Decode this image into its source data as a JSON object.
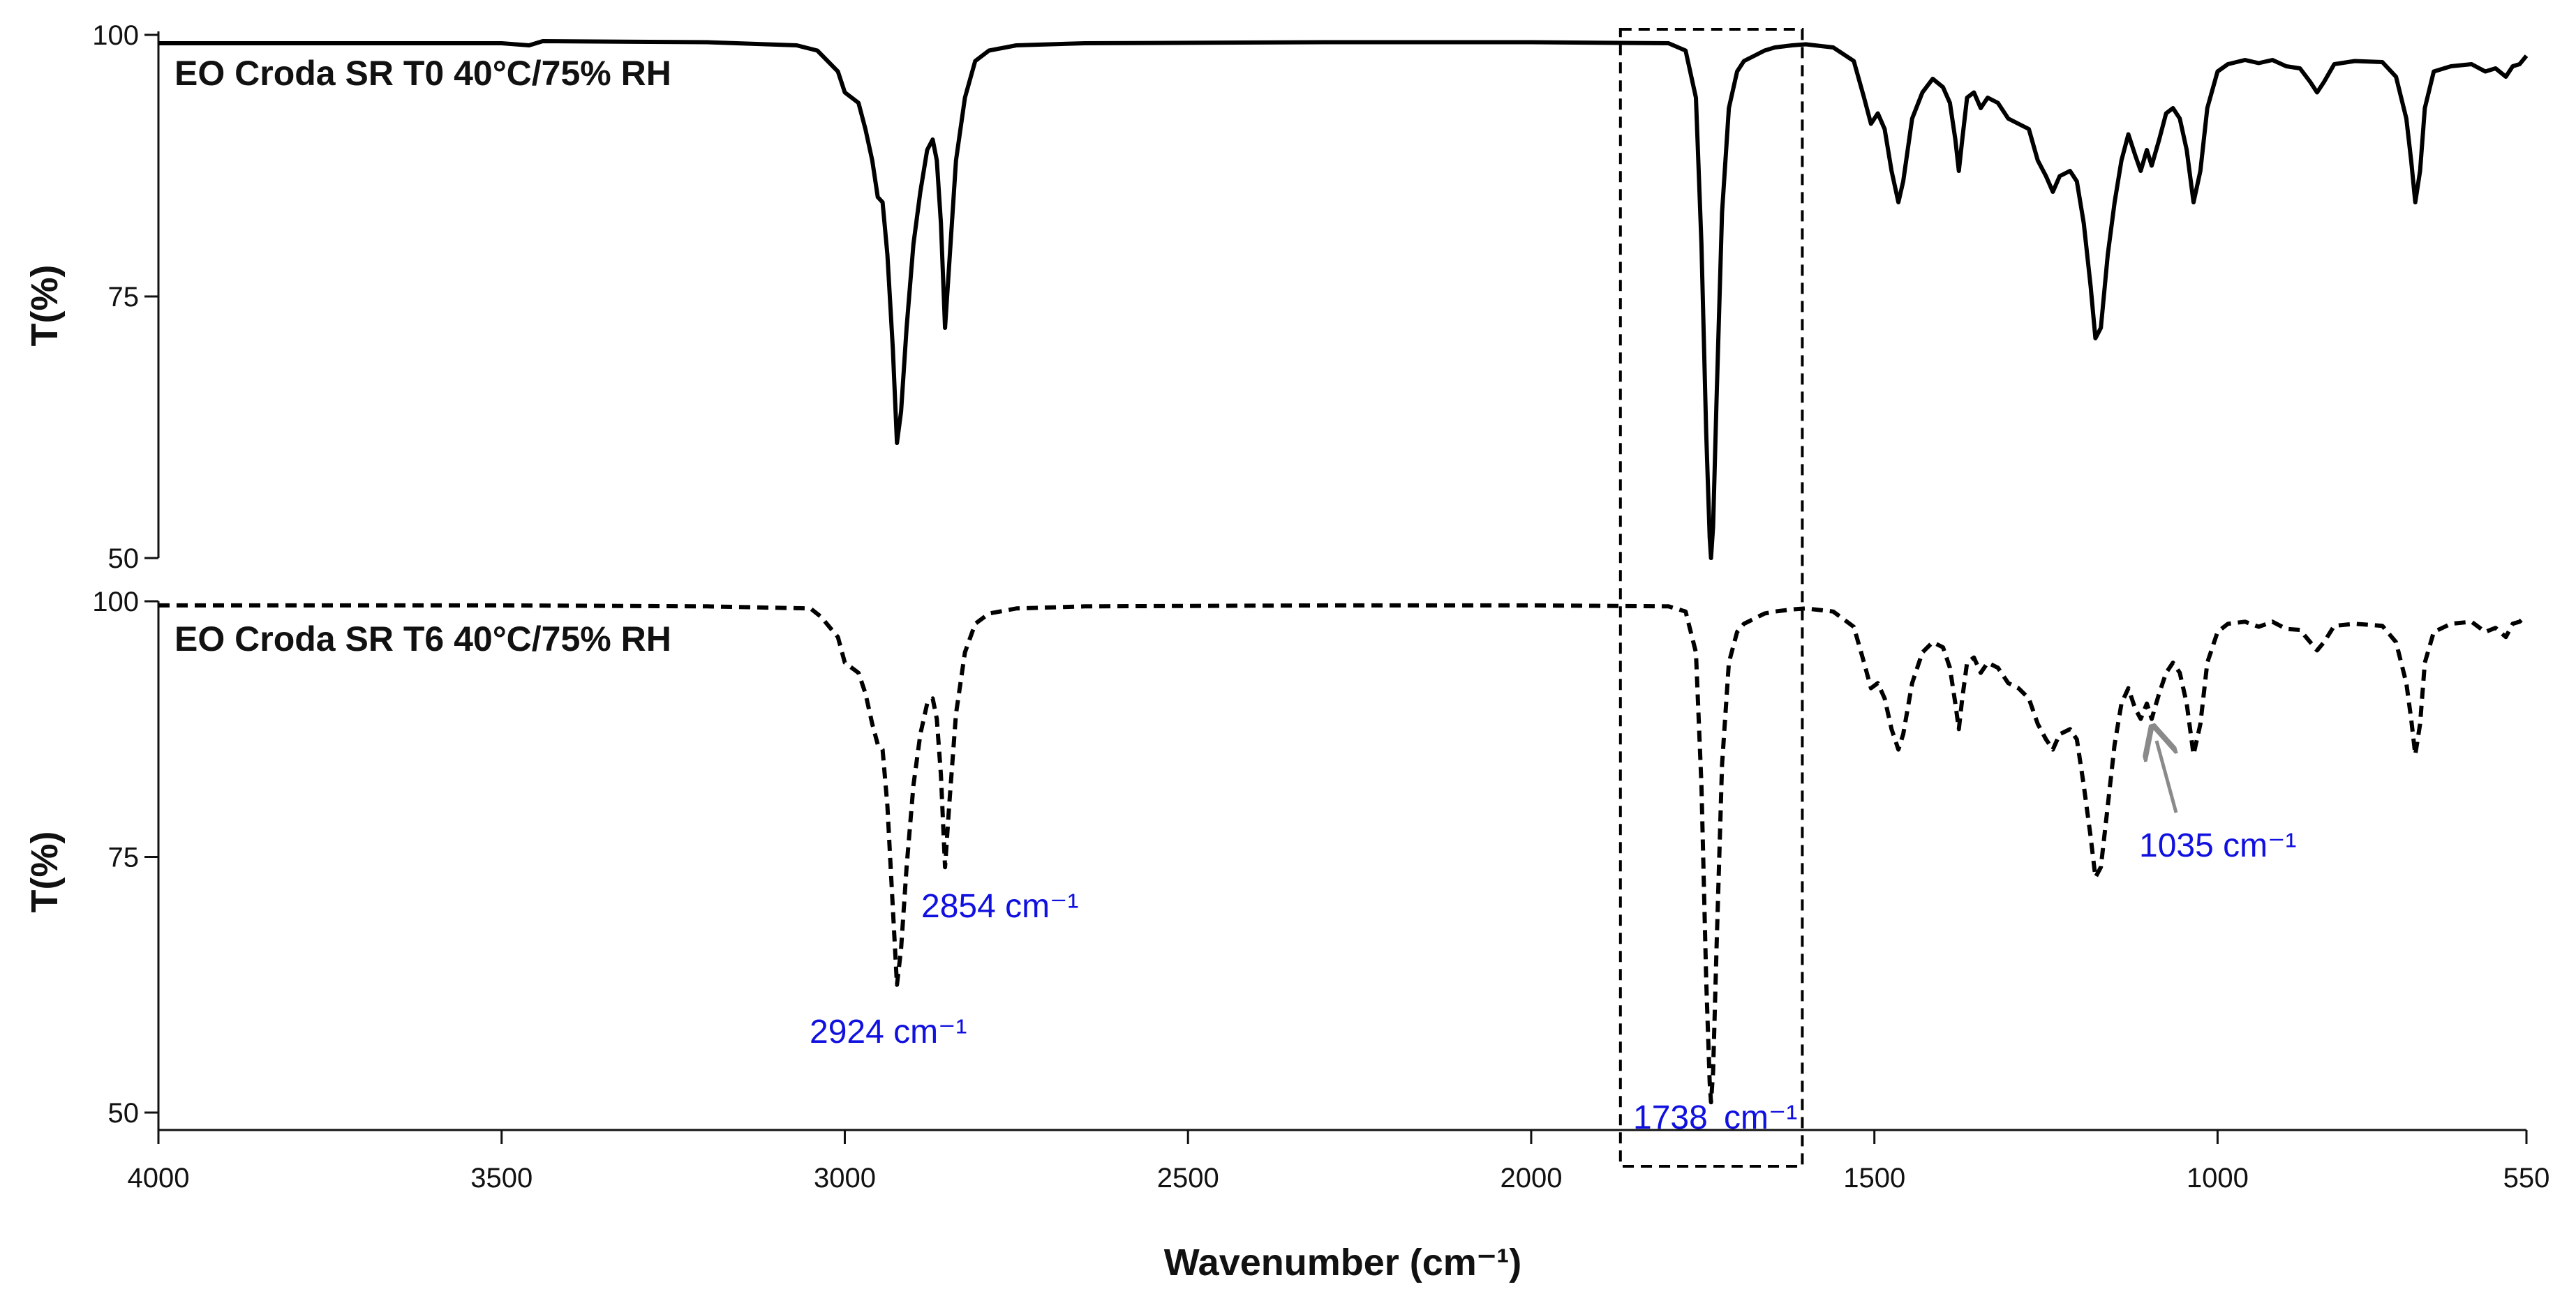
{
  "chart_data": {
    "type": "line",
    "xlabel": "Wavenumber (cm⁻¹)",
    "ylabel": "T(%)",
    "xlim": [
      4000,
      550
    ],
    "x_ticks": [
      {
        "value": 4000,
        "label": "4000"
      },
      {
        "value": 3500,
        "label": "3500"
      },
      {
        "value": 3000,
        "label": "3000"
      },
      {
        "value": 2500,
        "label": "2500"
      },
      {
        "value": 2000,
        "label": "2000"
      },
      {
        "value": 1500,
        "label": "1500"
      },
      {
        "value": 1000,
        "label": "1000"
      },
      {
        "value": 550,
        "label": "550"
      }
    ],
    "panels": [
      {
        "id": "top",
        "label": "EO Croda SR T0 40°C/75% RH",
        "ylim": [
          50,
          100
        ],
        "y_ticks": [
          {
            "value": 100,
            "label": "100"
          },
          {
            "value": 75,
            "label": "75"
          },
          {
            "value": 50,
            "label": "50"
          }
        ],
        "style": "solid",
        "series": [
          [
            4000,
            99.2
          ],
          [
            3500,
            99.2
          ],
          [
            3460,
            99.0
          ],
          [
            3440,
            99.4
          ],
          [
            3200,
            99.3
          ],
          [
            3070,
            99.0
          ],
          [
            3040,
            98.5
          ],
          [
            3010,
            96.5
          ],
          [
            3000,
            94.5
          ],
          [
            2990,
            94.0
          ],
          [
            2980,
            93.5
          ],
          [
            2970,
            91.0
          ],
          [
            2960,
            88.0
          ],
          [
            2952,
            84.5
          ],
          [
            2945,
            84.0
          ],
          [
            2938,
            79.0
          ],
          [
            2930,
            70.0
          ],
          [
            2924,
            61.0
          ],
          [
            2918,
            64.0
          ],
          [
            2910,
            72.0
          ],
          [
            2900,
            80.0
          ],
          [
            2890,
            85.0
          ],
          [
            2880,
            89.0
          ],
          [
            2872,
            90.0
          ],
          [
            2866,
            88.0
          ],
          [
            2860,
            82.0
          ],
          [
            2854,
            72.0
          ],
          [
            2848,
            78.0
          ],
          [
            2838,
            88.0
          ],
          [
            2825,
            94.0
          ],
          [
            2810,
            97.5
          ],
          [
            2790,
            98.5
          ],
          [
            2750,
            99.0
          ],
          [
            2650,
            99.2
          ],
          [
            2300,
            99.3
          ],
          [
            2000,
            99.3
          ],
          [
            1800,
            99.2
          ],
          [
            1775,
            98.5
          ],
          [
            1760,
            94.0
          ],
          [
            1752,
            80.0
          ],
          [
            1745,
            62.0
          ],
          [
            1740,
            52.0
          ],
          [
            1738,
            50.0
          ],
          [
            1735,
            53.0
          ],
          [
            1730,
            65.0
          ],
          [
            1722,
            83.0
          ],
          [
            1712,
            93.0
          ],
          [
            1700,
            96.5
          ],
          [
            1690,
            97.5
          ],
          [
            1675,
            98.0
          ],
          [
            1660,
            98.5
          ],
          [
            1645,
            98.8
          ],
          [
            1620,
            99.0
          ],
          [
            1600,
            99.1
          ],
          [
            1560,
            98.8
          ],
          [
            1530,
            97.5
          ],
          [
            1515,
            94.0
          ],
          [
            1505,
            91.5
          ],
          [
            1495,
            92.5
          ],
          [
            1485,
            91.0
          ],
          [
            1475,
            87.0
          ],
          [
            1465,
            84.0
          ],
          [
            1458,
            86.0
          ],
          [
            1445,
            92.0
          ],
          [
            1430,
            94.5
          ],
          [
            1415,
            95.8
          ],
          [
            1400,
            95.0
          ],
          [
            1390,
            93.5
          ],
          [
            1382,
            90.0
          ],
          [
            1377,
            87.0
          ],
          [
            1372,
            90.0
          ],
          [
            1365,
            94.0
          ],
          [
            1355,
            94.5
          ],
          [
            1345,
            93.0
          ],
          [
            1335,
            94.0
          ],
          [
            1320,
            93.5
          ],
          [
            1305,
            92.0
          ],
          [
            1290,
            91.5
          ],
          [
            1275,
            91.0
          ],
          [
            1262,
            88.0
          ],
          [
            1250,
            86.5
          ],
          [
            1240,
            85.0
          ],
          [
            1230,
            86.5
          ],
          [
            1215,
            87.0
          ],
          [
            1205,
            86.0
          ],
          [
            1195,
            82.0
          ],
          [
            1185,
            76.0
          ],
          [
            1178,
            71.0
          ],
          [
            1170,
            72.0
          ],
          [
            1160,
            79.0
          ],
          [
            1150,
            84.0
          ],
          [
            1140,
            88.0
          ],
          [
            1130,
            90.5
          ],
          [
            1120,
            88.5
          ],
          [
            1112,
            87.0
          ],
          [
            1103,
            89.0
          ],
          [
            1096,
            87.5
          ],
          [
            1085,
            90.0
          ],
          [
            1075,
            92.5
          ],
          [
            1065,
            93.0
          ],
          [
            1055,
            92.0
          ],
          [
            1045,
            89.0
          ],
          [
            1035,
            84.0
          ],
          [
            1025,
            87.0
          ],
          [
            1015,
            93.0
          ],
          [
            1000,
            96.5
          ],
          [
            985,
            97.2
          ],
          [
            960,
            97.6
          ],
          [
            940,
            97.3
          ],
          [
            920,
            97.6
          ],
          [
            900,
            97.0
          ],
          [
            880,
            96.8
          ],
          [
            865,
            95.5
          ],
          [
            855,
            94.5
          ],
          [
            845,
            95.5
          ],
          [
            830,
            97.2
          ],
          [
            800,
            97.5
          ],
          [
            760,
            97.4
          ],
          [
            740,
            96.0
          ],
          [
            725,
            92.0
          ],
          [
            718,
            88.0
          ],
          [
            712,
            84.0
          ],
          [
            705,
            87.0
          ],
          [
            698,
            93.0
          ],
          [
            685,
            96.5
          ],
          [
            660,
            97.0
          ],
          [
            630,
            97.2
          ],
          [
            610,
            96.5
          ],
          [
            595,
            96.8
          ],
          [
            580,
            96.0
          ],
          [
            570,
            97.0
          ],
          [
            560,
            97.2
          ],
          [
            550,
            98.0
          ]
        ]
      },
      {
        "id": "bottom",
        "label": "EO Croda SR T6 40°C/75% RH",
        "ylim": [
          50,
          100
        ],
        "y_ticks": [
          {
            "value": 100,
            "label": "100"
          },
          {
            "value": 75,
            "label": "75"
          },
          {
            "value": 50,
            "label": "50"
          }
        ],
        "style": "dashed",
        "series": [
          [
            4000,
            99.6
          ],
          [
            3500,
            99.6
          ],
          [
            3200,
            99.5
          ],
          [
            3050,
            99.3
          ],
          [
            3035,
            98.5
          ],
          [
            3010,
            96.5
          ],
          [
            3000,
            94.0
          ],
          [
            2990,
            93.5
          ],
          [
            2980,
            93.0
          ],
          [
            2970,
            91.0
          ],
          [
            2960,
            88.0
          ],
          [
            2952,
            86.0
          ],
          [
            2945,
            85.5
          ],
          [
            2938,
            80.0
          ],
          [
            2930,
            70.0
          ],
          [
            2924,
            62.5
          ],
          [
            2918,
            66.0
          ],
          [
            2910,
            74.0
          ],
          [
            2900,
            82.0
          ],
          [
            2890,
            87.0
          ],
          [
            2880,
            90.0
          ],
          [
            2872,
            90.5
          ],
          [
            2866,
            88.5
          ],
          [
            2860,
            83.0
          ],
          [
            2854,
            74.0
          ],
          [
            2848,
            80.0
          ],
          [
            2838,
            89.0
          ],
          [
            2825,
            95.0
          ],
          [
            2810,
            97.8
          ],
          [
            2790,
            98.8
          ],
          [
            2750,
            99.3
          ],
          [
            2650,
            99.5
          ],
          [
            2300,
            99.6
          ],
          [
            2000,
            99.6
          ],
          [
            1800,
            99.5
          ],
          [
            1775,
            99.0
          ],
          [
            1760,
            95.0
          ],
          [
            1752,
            82.0
          ],
          [
            1745,
            63.0
          ],
          [
            1740,
            53.0
          ],
          [
            1738,
            51.0
          ],
          [
            1735,
            54.0
          ],
          [
            1730,
            66.0
          ],
          [
            1722,
            84.0
          ],
          [
            1712,
            94.0
          ],
          [
            1700,
            97.0
          ],
          [
            1690,
            97.8
          ],
          [
            1675,
            98.3
          ],
          [
            1660,
            98.8
          ],
          [
            1645,
            99.0
          ],
          [
            1620,
            99.2
          ],
          [
            1600,
            99.3
          ],
          [
            1560,
            99.0
          ],
          [
            1530,
            97.5
          ],
          [
            1515,
            94.0
          ],
          [
            1505,
            91.5
          ],
          [
            1495,
            92.0
          ],
          [
            1485,
            90.5
          ],
          [
            1475,
            87.5
          ],
          [
            1465,
            85.5
          ],
          [
            1458,
            87.0
          ],
          [
            1445,
            92.0
          ],
          [
            1430,
            95.0
          ],
          [
            1415,
            96.0
          ],
          [
            1400,
            95.5
          ],
          [
            1390,
            93.5
          ],
          [
            1382,
            90.0
          ],
          [
            1377,
            87.5
          ],
          [
            1372,
            90.5
          ],
          [
            1365,
            94.0
          ],
          [
            1355,
            94.5
          ],
          [
            1345,
            93.0
          ],
          [
            1335,
            94.0
          ],
          [
            1320,
            93.5
          ],
          [
            1305,
            92.0
          ],
          [
            1290,
            91.5
          ],
          [
            1275,
            90.5
          ],
          [
            1262,
            88.0
          ],
          [
            1250,
            86.5
          ],
          [
            1240,
            85.5
          ],
          [
            1230,
            87.0
          ],
          [
            1215,
            87.5
          ],
          [
            1205,
            86.5
          ],
          [
            1195,
            82.0
          ],
          [
            1185,
            77.0
          ],
          [
            1178,
            73.0
          ],
          [
            1170,
            74.0
          ],
          [
            1160,
            80.0
          ],
          [
            1150,
            86.0
          ],
          [
            1140,
            90.0
          ],
          [
            1130,
            91.5
          ],
          [
            1120,
            89.5
          ],
          [
            1112,
            88.5
          ],
          [
            1103,
            90.0
          ],
          [
            1096,
            88.5
          ],
          [
            1085,
            91.0
          ],
          [
            1075,
            93.0
          ],
          [
            1065,
            94.0
          ],
          [
            1055,
            93.0
          ],
          [
            1045,
            90.0
          ],
          [
            1035,
            85.0
          ],
          [
            1025,
            88.0
          ],
          [
            1015,
            94.0
          ],
          [
            1000,
            97.0
          ],
          [
            985,
            97.8
          ],
          [
            960,
            98.0
          ],
          [
            940,
            97.5
          ],
          [
            920,
            98.0
          ],
          [
            900,
            97.3
          ],
          [
            880,
            97.2
          ],
          [
            865,
            96.0
          ],
          [
            855,
            95.2
          ],
          [
            845,
            96.0
          ],
          [
            830,
            97.6
          ],
          [
            800,
            97.8
          ],
          [
            760,
            97.6
          ],
          [
            740,
            96.0
          ],
          [
            725,
            92.0
          ],
          [
            718,
            88.5
          ],
          [
            712,
            85.0
          ],
          [
            705,
            88.0
          ],
          [
            698,
            94.0
          ],
          [
            685,
            97.0
          ],
          [
            660,
            97.8
          ],
          [
            630,
            98.0
          ],
          [
            610,
            97.0
          ],
          [
            595,
            97.4
          ],
          [
            580,
            96.5
          ],
          [
            570,
            97.8
          ],
          [
            560,
            98.0
          ],
          [
            550,
            98.6
          ]
        ]
      }
    ],
    "annotations": [
      {
        "text": "2924 cm⁻¹",
        "panel": "bottom",
        "x": 2924,
        "y": 62.5,
        "color": "#1010e0"
      },
      {
        "text": "2854 cm⁻¹",
        "panel": "bottom",
        "x": 2854,
        "y": 74,
        "color": "#1010e0"
      },
      {
        "text": "1738",
        "panel": "bottom",
        "x": 1738,
        "y": 51,
        "color": "#1010e0"
      },
      {
        "text": "cm⁻¹",
        "panel": "bottom",
        "x": 1738,
        "y": 51,
        "color": "#1010e0"
      },
      {
        "text": "1035 cm⁻¹",
        "panel": "bottom",
        "x": 1035,
        "y": 85,
        "color": "#1010e0",
        "arrow_color": "#8a8a8a"
      }
    ],
    "highlight_region": {
      "x_from": 1870,
      "x_to": 1605,
      "style": "dashed"
    }
  }
}
